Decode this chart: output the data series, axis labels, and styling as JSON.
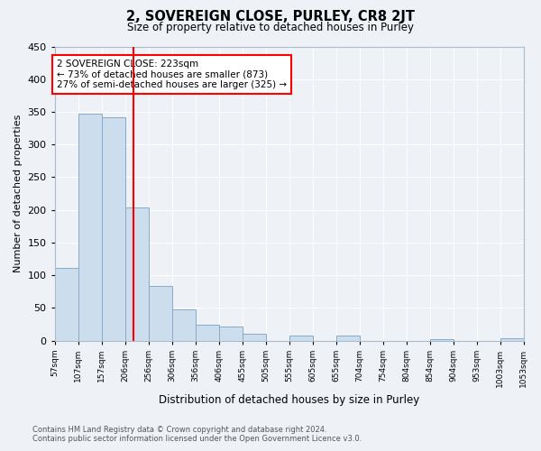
{
  "title": "2, SOVEREIGN CLOSE, PURLEY, CR8 2JT",
  "subtitle": "Size of property relative to detached houses in Purley",
  "xlabel": "Distribution of detached houses by size in Purley",
  "ylabel": "Number of detached properties",
  "bar_color": "#ccdded",
  "bar_edge_color": "#88aac8",
  "background_color": "#eef2f7",
  "grid_color": "#ffffff",
  "marker_line_color": "red",
  "marker_line_bin": 3,
  "annotation_title": "2 SOVEREIGN CLOSE: 223sqm",
  "annotation_line1": "← 73% of detached houses are smaller (873)",
  "annotation_line2": "27% of semi-detached houses are larger (325) →",
  "bin_labels": [
    "57sqm",
    "107sqm",
    "157sqm",
    "206sqm",
    "256sqm",
    "306sqm",
    "356sqm",
    "406sqm",
    "455sqm",
    "505sqm",
    "555sqm",
    "605sqm",
    "655sqm",
    "704sqm",
    "754sqm",
    "804sqm",
    "854sqm",
    "904sqm",
    "953sqm",
    "1003sqm",
    "1053sqm"
  ],
  "counts": [
    111,
    347,
    342,
    203,
    84,
    47,
    24,
    21,
    11,
    0,
    7,
    0,
    8,
    0,
    0,
    0,
    2,
    0,
    0,
    3
  ],
  "ylim": [
    0,
    450
  ],
  "yticks": [
    0,
    50,
    100,
    150,
    200,
    250,
    300,
    350,
    400,
    450
  ],
  "footer_line1": "Contains HM Land Registry data © Crown copyright and database right 2024.",
  "footer_line2": "Contains public sector information licensed under the Open Government Licence v3.0."
}
